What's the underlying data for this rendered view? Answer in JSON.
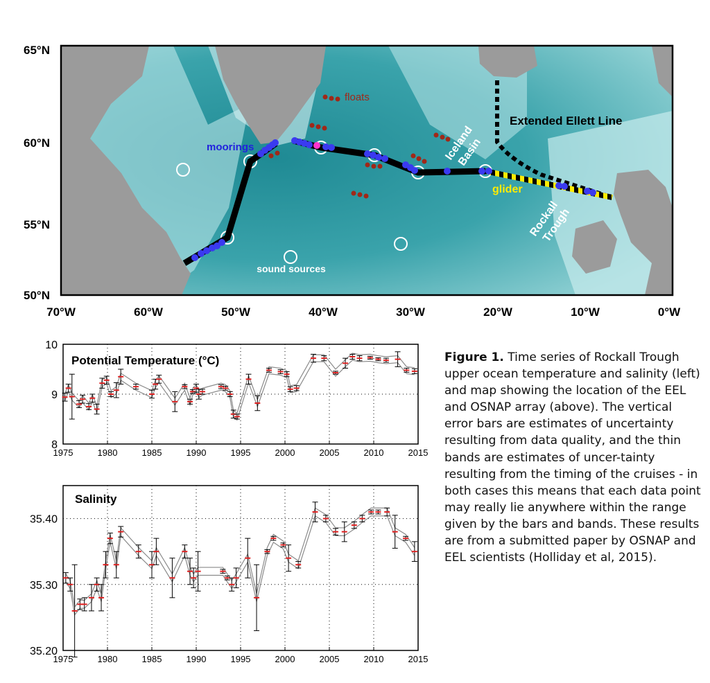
{
  "map": {
    "lat_labels": [
      "65°N",
      "60°N",
      "55°N",
      "50°N"
    ],
    "lon_labels": [
      "70°W",
      "60°W",
      "50°W",
      "40°W",
      "30°W",
      "20°W",
      "10°W",
      "0°W"
    ],
    "annotations": {
      "floats": "floats",
      "moorings": "moorings",
      "extended_ellett_line": "Extended Ellett Line",
      "iceland_basin_1": "Iceland",
      "iceland_basin_2": "Basin",
      "glider": "glider",
      "rockall_trough_1": "Rockall",
      "rockall_trough_2": "Trough",
      "sound_sources": "sound sources"
    },
    "colors": {
      "land": "#9b9b9b",
      "deep_ocean": "#2b8f98",
      "shelf": "#e8f6f7",
      "osnap_line": "#000000",
      "moorings": "#3333ff",
      "floats": "#a02818",
      "glider": "#ffeb00"
    }
  },
  "chart_data": [
    {
      "type": "line",
      "title": "Potential Temperature (°C)",
      "xlabel": "",
      "ylabel": "",
      "xlim": [
        1975,
        2015
      ],
      "ylim": [
        8,
        10
      ],
      "x_ticks": [
        "1975",
        "1980",
        "1985",
        "1990",
        "1995",
        "2000",
        "2005",
        "2010",
        "2015"
      ],
      "y_ticks": [
        "8",
        "9",
        "10"
      ],
      "grid": true,
      "x": [
        1975.2,
        1975.6,
        1976.0,
        1976.8,
        1977.2,
        1977.9,
        1978.3,
        1978.8,
        1979.4,
        1979.9,
        1980.4,
        1981.0,
        1981.5,
        1983.2,
        1985.0,
        1985.4,
        1985.8,
        1987.6,
        1988.7,
        1989.3,
        1989.6,
        1990.0,
        1990.3,
        1990.7,
        1992.8,
        1993.3,
        1993.8,
        1994.2,
        1994.6,
        1995.9,
        1996.9,
        1998.2,
        1999.5,
        2000.2,
        2000.6,
        2001.3,
        2003.2,
        2004.4,
        2005.7,
        2006.8,
        2007.6,
        2008.4,
        2009.6,
        2010.5,
        2011.4,
        2012.7,
        2013.7,
        2014.6
      ],
      "values": [
        8.94,
        9.12,
        8.95,
        8.8,
        8.9,
        8.75,
        8.92,
        8.7,
        9.22,
        9.28,
        9.0,
        9.08,
        9.35,
        9.15,
        9.0,
        9.2,
        9.3,
        8.85,
        9.15,
        8.85,
        9.05,
        9.12,
        9.0,
        9.05,
        9.15,
        9.12,
        9.0,
        8.6,
        8.55,
        9.3,
        8.82,
        9.48,
        9.45,
        9.4,
        9.1,
        9.12,
        9.72,
        9.72,
        9.43,
        9.62,
        9.75,
        9.72,
        9.73,
        9.7,
        9.68,
        9.7,
        9.48,
        9.46
      ],
      "error": [
        0.08,
        0.08,
        0.45,
        0.07,
        0.08,
        0.06,
        0.08,
        0.1,
        0.1,
        0.08,
        0.05,
        0.15,
        0.15,
        0.05,
        0.08,
        0.1,
        0.08,
        0.2,
        0.04,
        0.05,
        0.04,
        0.08,
        0.1,
        0.05,
        0.04,
        0.04,
        0.05,
        0.08,
        0.05,
        0.1,
        0.15,
        0.04,
        0.04,
        0.05,
        0.05,
        0.05,
        0.08,
        0.05,
        0.03,
        0.1,
        0.05,
        0.05,
        0.03,
        0.03,
        0.04,
        0.15,
        0.04,
        0.05
      ]
    },
    {
      "type": "line",
      "title": "Salinity",
      "xlabel": "",
      "ylabel": "",
      "xlim": [
        1975,
        2015
      ],
      "ylim": [
        35.2,
        35.45
      ],
      "x_ticks": [
        "1975",
        "1980",
        "1985",
        "1990",
        "1995",
        "2000",
        "2005",
        "2010",
        "2015"
      ],
      "y_ticks": [
        "35.20",
        "35.30",
        "35.40"
      ],
      "grid": true,
      "x": [
        1975.3,
        1975.8,
        1976.3,
        1976.9,
        1977.4,
        1978.2,
        1978.8,
        1979.3,
        1979.8,
        1980.3,
        1981.0,
        1981.5,
        1983.5,
        1985.0,
        1985.5,
        1987.3,
        1988.7,
        1989.3,
        1989.7,
        1990.2,
        1993.0,
        1993.5,
        1994.0,
        1994.5,
        1995.8,
        1996.8,
        1998.0,
        1998.7,
        1999.8,
        2000.4,
        2001.5,
        2003.4,
        2004.6,
        2005.7,
        2006.7,
        2007.8,
        2008.7,
        2009.7,
        2010.5,
        2011.5,
        2012.4,
        2013.6,
        2014.6
      ],
      "values": [
        35.31,
        35.3,
        35.26,
        35.27,
        35.27,
        35.28,
        35.3,
        35.28,
        35.33,
        35.37,
        35.33,
        35.38,
        35.35,
        35.33,
        35.35,
        35.31,
        35.35,
        35.32,
        35.31,
        35.32,
        35.32,
        35.31,
        35.3,
        35.31,
        35.34,
        35.28,
        35.35,
        35.37,
        35.36,
        35.34,
        35.33,
        35.41,
        35.4,
        35.38,
        35.38,
        35.39,
        35.4,
        35.41,
        35.41,
        35.41,
        35.38,
        35.37,
        35.35
      ],
      "error": [
        0.008,
        0.01,
        0.07,
        0.008,
        0.01,
        0.02,
        0.01,
        0.02,
        0.02,
        0.008,
        0.02,
        0.008,
        0.01,
        0.02,
        0.02,
        0.03,
        0.01,
        0.02,
        0.015,
        0.03,
        0.003,
        0.003,
        0.01,
        0.015,
        0.03,
        0.05,
        0.003,
        0.003,
        0.003,
        0.02,
        0.005,
        0.015,
        0.005,
        0.005,
        0.015,
        0.005,
        0.005,
        0.003,
        0.003,
        0.006,
        0.025,
        0.003,
        0.015
      ]
    }
  ],
  "caption": {
    "label": "Figure 1.",
    "text": " Time series of Rockall Trough upper ocean temperature and salinity (left) and map showing the location of the EEL and OSNAP array (above).  The vertical error bars are estimates of uncertainty resulting from data quality, and the thin bands are estimates of uncer-tainty resulting from the timing of the cruises - in both cases this means that each data point may really lie anywhere within the range given by the bars and bands.  These results are from a submitted paper by OSNAP and EEL scientists (Holliday et al, 2015)."
  }
}
